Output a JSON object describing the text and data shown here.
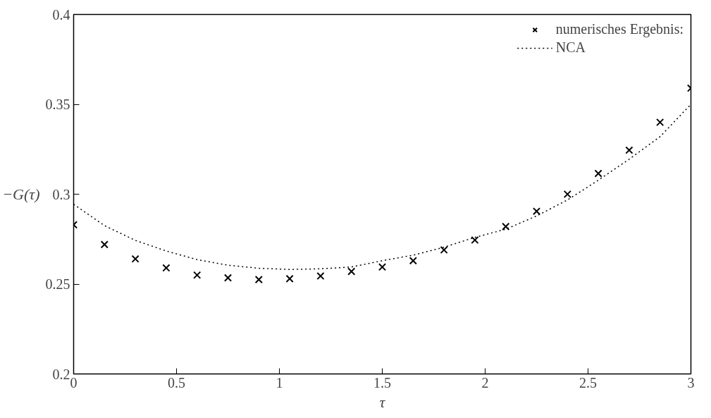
{
  "chart_data": {
    "type": "scatter",
    "xlabel": "τ",
    "ylabel": "−G(τ)",
    "xlim": [
      0,
      3
    ],
    "ylim": [
      0.2,
      0.4
    ],
    "xticks": [
      0,
      0.5,
      1,
      1.5,
      2,
      2.5,
      3
    ],
    "yticks": [
      0.2,
      0.25,
      0.3,
      0.35,
      0.4
    ],
    "grid": false,
    "legend": "top right",
    "x": [
      0,
      0.15,
      0.3,
      0.45,
      0.6,
      0.75,
      0.9,
      1.05,
      1.2,
      1.35,
      1.5,
      1.65,
      1.8,
      1.95,
      2.1,
      2.25,
      2.4,
      2.55,
      2.7,
      2.85,
      3.0
    ],
    "series": [
      {
        "name": "numerisches Ergebnis:",
        "marker": "cross",
        "color": "#000000",
        "values": [
          0.283,
          0.272,
          0.264,
          0.259,
          0.255,
          0.2535,
          0.2525,
          0.253,
          0.2545,
          0.257,
          0.2595,
          0.263,
          0.269,
          0.2745,
          0.282,
          0.2905,
          0.3,
          0.3115,
          0.3245,
          0.34,
          0.359
        ]
      },
      {
        "name": "NCA",
        "type": "line",
        "line_style": "dotted",
        "color": "#000000",
        "values": [
          0.2944,
          0.2825,
          0.2743,
          0.2684,
          0.2636,
          0.2605,
          0.2588,
          0.2581,
          0.2585,
          0.2595,
          0.263,
          0.2661,
          0.2705,
          0.276,
          0.2805,
          0.2879,
          0.2968,
          0.3078,
          0.3195,
          0.332,
          0.35
        ]
      }
    ]
  }
}
